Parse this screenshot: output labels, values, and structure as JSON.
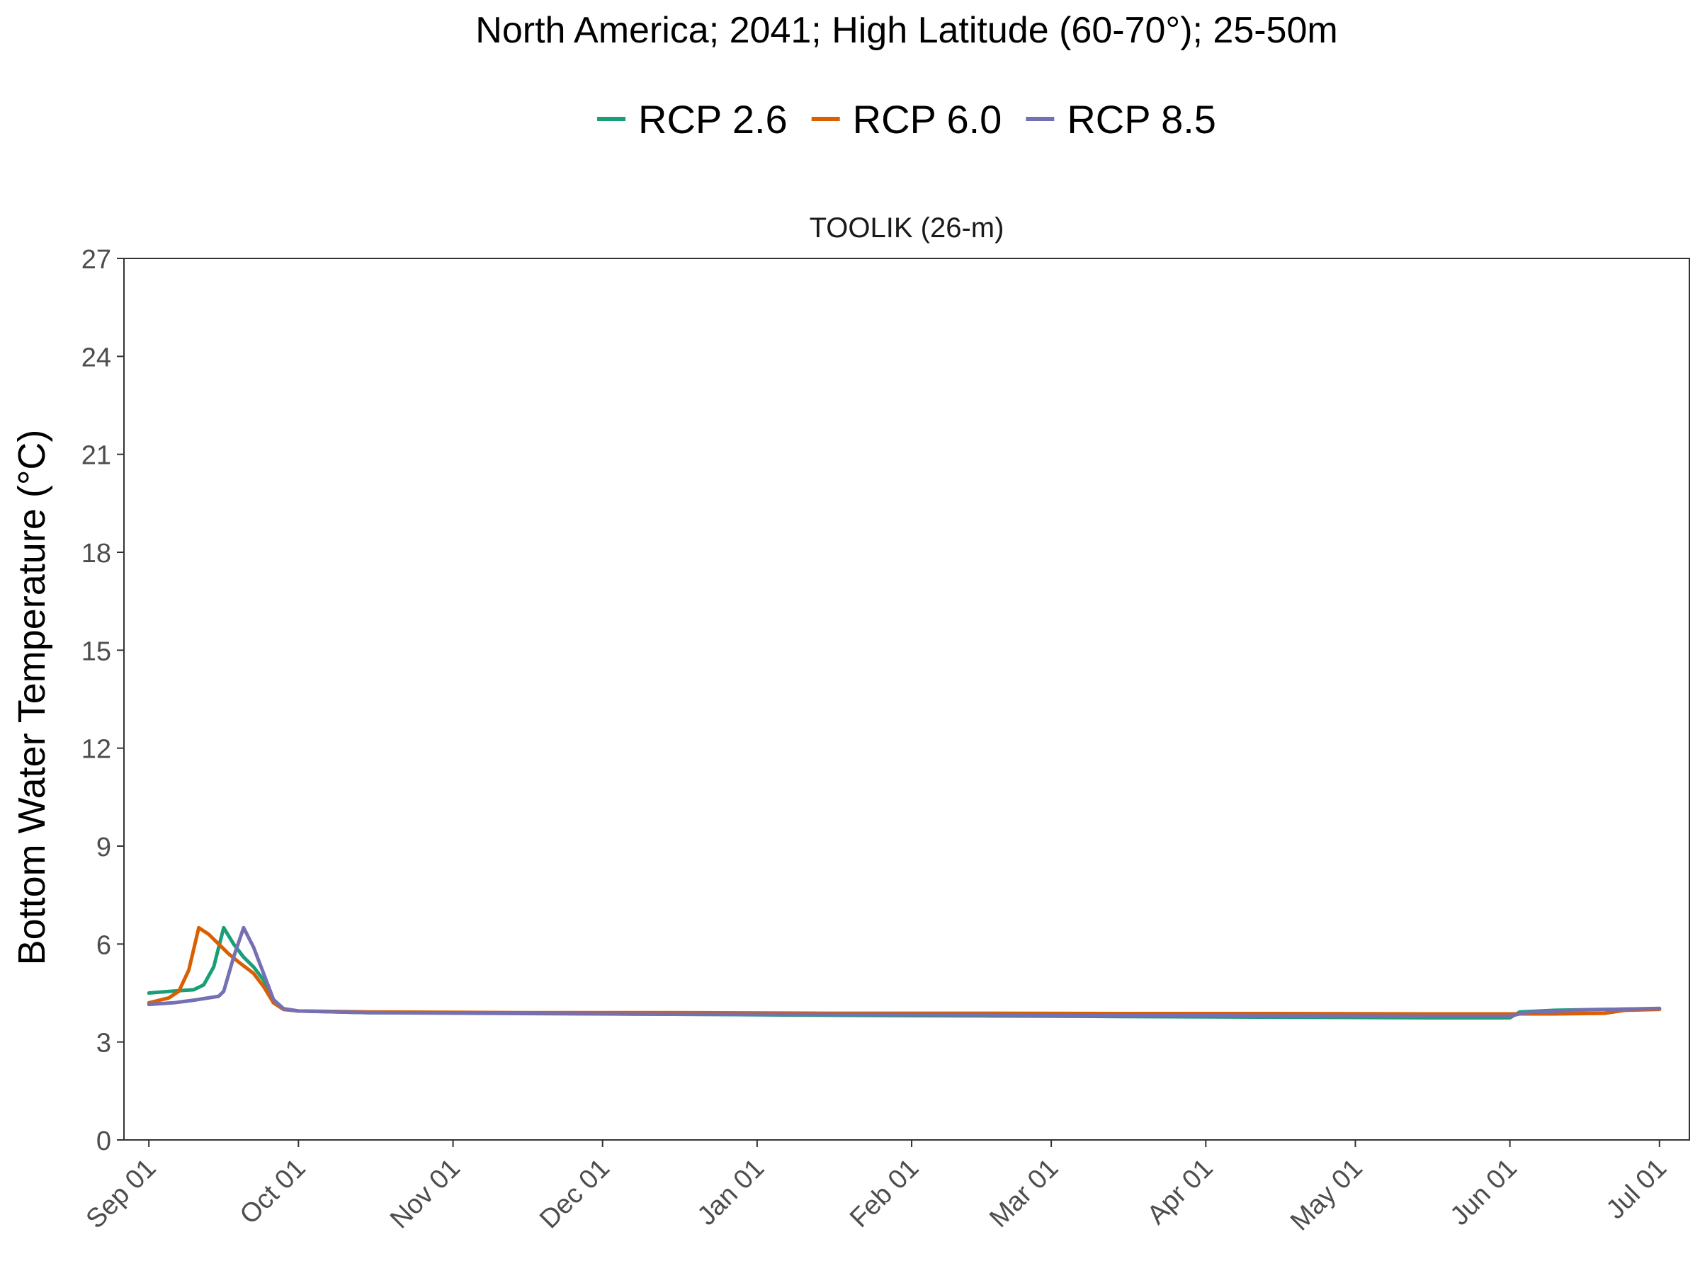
{
  "chart_data": {
    "type": "line",
    "title": "North America;  2041;  High Latitude (60-70°);  25-50m",
    "panel_title": "TOOLIK (26-m)",
    "xlabel": "",
    "ylabel": "Bottom Water Temperature (°C)",
    "ylim": [
      0,
      27
    ],
    "yticks": [
      0,
      3,
      6,
      9,
      12,
      15,
      18,
      21,
      24,
      27
    ],
    "xlim": [
      "2041-08-27",
      "2042-07-07"
    ],
    "xticks": [
      {
        "date": "2041-09-01",
        "label": "Sep 01"
      },
      {
        "date": "2041-10-01",
        "label": "Oct 01"
      },
      {
        "date": "2041-11-01",
        "label": "Nov 01"
      },
      {
        "date": "2041-12-01",
        "label": "Dec 01"
      },
      {
        "date": "2042-01-01",
        "label": "Jan 01"
      },
      {
        "date": "2042-02-01",
        "label": "Feb 01"
      },
      {
        "date": "2042-03-01",
        "label": "Mar 01"
      },
      {
        "date": "2042-04-01",
        "label": "Apr 01"
      },
      {
        "date": "2042-05-01",
        "label": "May 01"
      },
      {
        "date": "2042-06-01",
        "label": "Jun 01"
      },
      {
        "date": "2042-07-01",
        "label": "Jul 01"
      }
    ],
    "grid": false,
    "legend_position": "top",
    "series": [
      {
        "name": "RCP 2.6",
        "color": "#1b9e77",
        "points": [
          [
            "2041-09-01",
            4.5
          ],
          [
            "2041-09-05",
            4.55
          ],
          [
            "2041-09-10",
            4.6
          ],
          [
            "2041-09-12",
            4.75
          ],
          [
            "2041-09-14",
            5.3
          ],
          [
            "2041-09-16",
            6.5
          ],
          [
            "2041-09-18",
            6.0
          ],
          [
            "2041-09-20",
            5.6
          ],
          [
            "2041-09-22",
            5.3
          ],
          [
            "2041-09-24",
            4.9
          ],
          [
            "2041-09-26",
            4.2
          ],
          [
            "2041-09-28",
            4.0
          ],
          [
            "2041-10-01",
            3.95
          ],
          [
            "2041-10-15",
            3.9
          ],
          [
            "2041-11-15",
            3.88
          ],
          [
            "2041-12-15",
            3.85
          ],
          [
            "2042-01-15",
            3.82
          ],
          [
            "2042-02-15",
            3.8
          ],
          [
            "2042-03-15",
            3.78
          ],
          [
            "2042-04-15",
            3.76
          ],
          [
            "2042-05-15",
            3.74
          ],
          [
            "2042-06-01",
            3.74
          ],
          [
            "2042-06-03",
            3.92
          ],
          [
            "2042-06-10",
            3.97
          ],
          [
            "2042-06-20",
            4.0
          ],
          [
            "2042-07-01",
            4.02
          ]
        ]
      },
      {
        "name": "RCP 6.0",
        "color": "#d95f02",
        "points": [
          [
            "2041-09-01",
            4.2
          ],
          [
            "2041-09-05",
            4.35
          ],
          [
            "2041-09-07",
            4.55
          ],
          [
            "2041-09-09",
            5.2
          ],
          [
            "2041-09-11",
            6.5
          ],
          [
            "2041-09-13",
            6.3
          ],
          [
            "2041-09-15",
            6.0
          ],
          [
            "2041-09-17",
            5.7
          ],
          [
            "2041-09-19",
            5.45
          ],
          [
            "2041-09-22",
            5.1
          ],
          [
            "2041-09-24",
            4.7
          ],
          [
            "2041-09-26",
            4.2
          ],
          [
            "2041-09-28",
            4.0
          ],
          [
            "2041-10-01",
            3.95
          ],
          [
            "2041-10-15",
            3.92
          ],
          [
            "2041-11-15",
            3.9
          ],
          [
            "2041-12-15",
            3.9
          ],
          [
            "2042-01-15",
            3.88
          ],
          [
            "2042-02-15",
            3.88
          ],
          [
            "2042-03-15",
            3.87
          ],
          [
            "2042-04-15",
            3.87
          ],
          [
            "2042-05-15",
            3.86
          ],
          [
            "2042-06-10",
            3.86
          ],
          [
            "2042-06-20",
            3.88
          ],
          [
            "2042-06-24",
            3.97
          ],
          [
            "2042-07-01",
            4.0
          ]
        ]
      },
      {
        "name": "RCP 8.5",
        "color": "#7570b3",
        "points": [
          [
            "2041-09-01",
            4.15
          ],
          [
            "2041-09-06",
            4.2
          ],
          [
            "2041-09-10",
            4.28
          ],
          [
            "2041-09-15",
            4.4
          ],
          [
            "2041-09-16",
            4.55
          ],
          [
            "2041-09-18",
            5.6
          ],
          [
            "2041-09-20",
            6.5
          ],
          [
            "2041-09-22",
            5.9
          ],
          [
            "2041-09-24",
            5.1
          ],
          [
            "2041-09-26",
            4.3
          ],
          [
            "2041-09-28",
            4.02
          ],
          [
            "2041-10-01",
            3.95
          ],
          [
            "2041-10-15",
            3.9
          ],
          [
            "2041-11-15",
            3.87
          ],
          [
            "2041-12-15",
            3.85
          ],
          [
            "2042-01-15",
            3.84
          ],
          [
            "2042-02-15",
            3.83
          ],
          [
            "2042-03-15",
            3.82
          ],
          [
            "2042-04-15",
            3.8
          ],
          [
            "2042-05-15",
            3.79
          ],
          [
            "2042-06-01",
            3.79
          ],
          [
            "2042-06-04",
            3.9
          ],
          [
            "2042-06-15",
            3.98
          ],
          [
            "2042-07-01",
            4.03
          ]
        ]
      }
    ]
  }
}
